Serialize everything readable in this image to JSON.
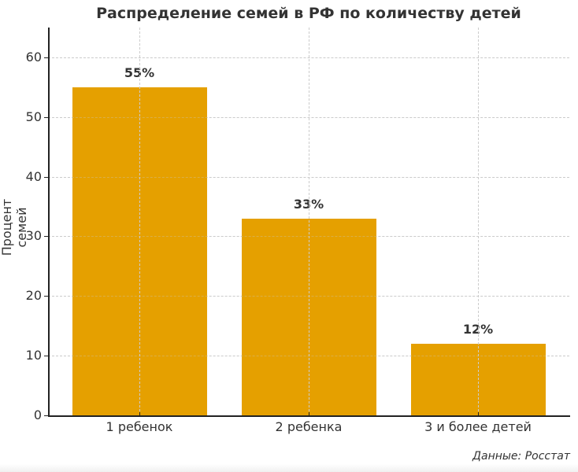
{
  "chart_data": {
    "type": "bar",
    "title": "Распределение семей в РФ по количеству детей",
    "xlabel": "",
    "ylabel": "Процент семей",
    "categories": [
      "1 ребенок",
      "2 ребенка",
      "3 и более детей"
    ],
    "values": [
      55,
      33,
      12
    ],
    "value_labels": [
      "55%",
      "33%",
      "12%"
    ],
    "ylim": [
      0,
      65
    ],
    "yticks": [
      0,
      10,
      20,
      30,
      40,
      50,
      60
    ],
    "grid": true,
    "legend": null,
    "bar_color": "#E5A000",
    "source_note": "Данные: Росстат"
  }
}
